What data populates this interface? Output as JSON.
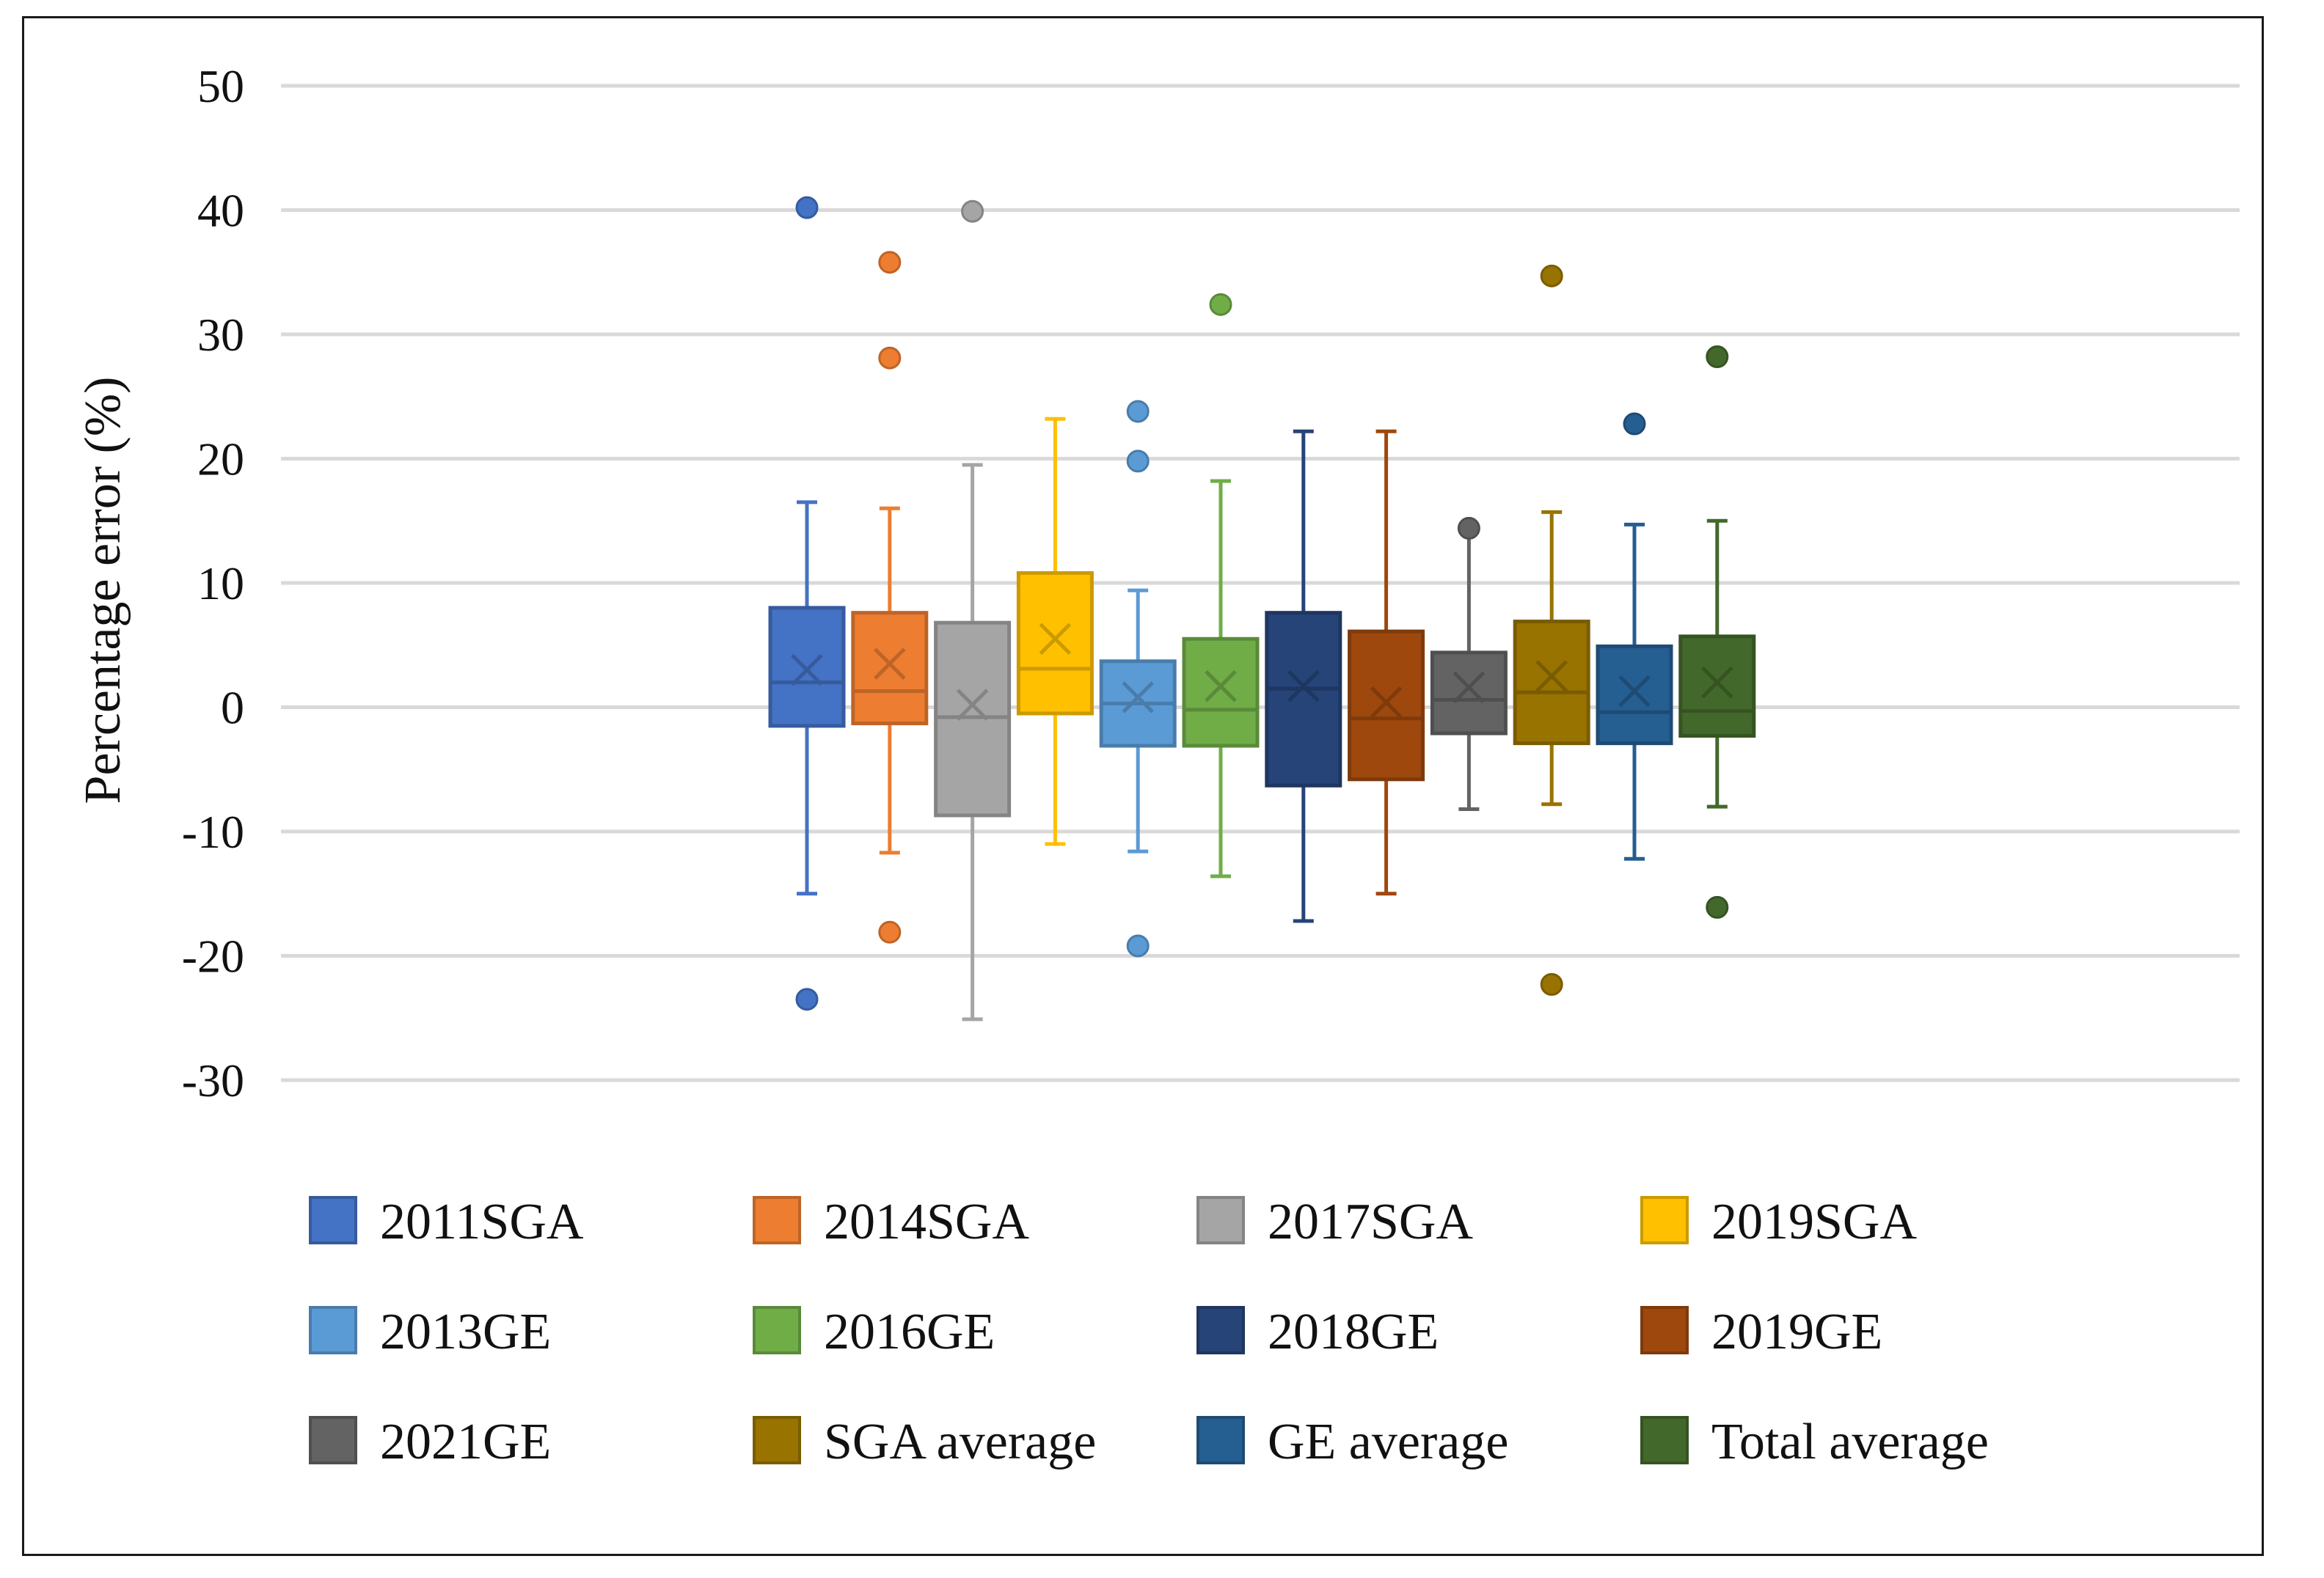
{
  "chart_data": {
    "type": "boxplot",
    "title": "",
    "xlabel": "",
    "ylabel": "Percentage error (%)",
    "ylim": [
      -30,
      50
    ],
    "yticks": [
      50,
      40,
      30,
      20,
      10,
      0,
      -10,
      -20,
      -30
    ],
    "grid": true,
    "legend_position": "bottom",
    "series": [
      {
        "name": "2011SGA",
        "color": "#4472C4",
        "min": -15,
        "q1": -1.5,
        "median": 2,
        "q3": 8,
        "max": 16.5,
        "mean": 3,
        "outliers": [
          40.2,
          -23.5
        ]
      },
      {
        "name": "2014SGA",
        "color": "#ED7D31",
        "min": -11.7,
        "q1": -1.3,
        "median": 1.3,
        "q3": 7.6,
        "max": 16,
        "mean": 3.5,
        "outliers": [
          35.8,
          28.1,
          -18.1
        ]
      },
      {
        "name": "2017SGA",
        "color": "#A5A5A5",
        "min": -25.1,
        "q1": -8.7,
        "median": -0.8,
        "q3": 6.8,
        "max": 19.5,
        "mean": 0.2,
        "outliers": [
          39.9
        ]
      },
      {
        "name": "2019SGA",
        "color": "#FFC000",
        "min": -11,
        "q1": -0.5,
        "median": 3.1,
        "q3": 10.8,
        "max": 23.2,
        "mean": 5.5,
        "outliers": []
      },
      {
        "name": "2013GE",
        "color": "#5B9BD5",
        "min": -11.6,
        "q1": -3.1,
        "median": 0.3,
        "q3": 3.7,
        "max": 9.4,
        "mean": 0.8,
        "outliers": [
          23.8,
          19.8,
          -19.2
        ]
      },
      {
        "name": "2016GE",
        "color": "#70AD47",
        "min": -13.6,
        "q1": -3.1,
        "median": -0.2,
        "q3": 5.5,
        "max": 18.2,
        "mean": 1.7,
        "outliers": [
          32.4
        ]
      },
      {
        "name": "2018GE",
        "color": "#264478",
        "min": -17.2,
        "q1": -6.3,
        "median": 1.5,
        "q3": 7.6,
        "max": 22.2,
        "mean": 1.7,
        "outliers": []
      },
      {
        "name": "2019GE",
        "color": "#9E480E",
        "min": -15,
        "q1": -5.8,
        "median": -0.9,
        "q3": 6.1,
        "max": 22.2,
        "mean": 0.4,
        "outliers": []
      },
      {
        "name": "2021GE",
        "color": "#636363",
        "min": -8.2,
        "q1": -2.1,
        "median": 0.6,
        "q3": 4.4,
        "max": 14.5,
        "mean": 1.6,
        "outliers": [
          14.4
        ]
      },
      {
        "name": "SGA average",
        "color": "#997300",
        "min": -7.8,
        "q1": -2.9,
        "median": 1.2,
        "q3": 6.9,
        "max": 15.7,
        "mean": 2.5,
        "outliers": [
          34.7,
          -22.3
        ]
      },
      {
        "name": "GE average",
        "color": "#255E91",
        "min": -12.2,
        "q1": -2.9,
        "median": -0.4,
        "q3": 4.9,
        "max": 14.7,
        "mean": 1.3,
        "outliers": [
          22.8
        ]
      },
      {
        "name": "Total average",
        "color": "#43682B",
        "min": -8,
        "q1": -2.3,
        "median": -0.3,
        "q3": 5.7,
        "max": 15,
        "mean": 2,
        "outliers": [
          28.2,
          -16.1
        ]
      }
    ]
  }
}
